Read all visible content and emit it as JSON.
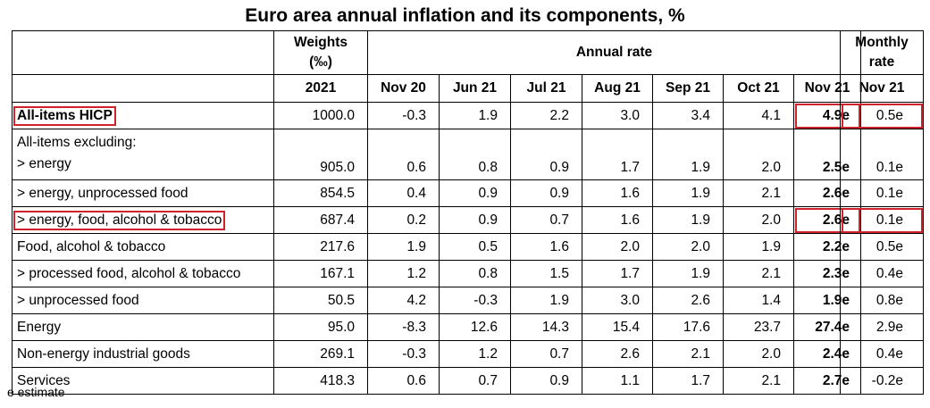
{
  "title": "Euro area annual inflation and its components, %",
  "headers": {
    "weights": "Weights",
    "weights_unit": "(‰)",
    "annual_rate": "Annual rate",
    "monthly_rate_1": "Monthly",
    "monthly_rate_2": "rate",
    "weight_year": "2021",
    "months": [
      "Nov 20",
      "Jun 21",
      "Jul 21",
      "Aug 21",
      "Sep 21",
      "Oct 21",
      "Nov 21"
    ],
    "monthly_month": "Nov 21"
  },
  "rows": [
    {
      "label": "All-items HICP",
      "weight": "1000.0",
      "values": [
        "-0.3",
        "1.9",
        "2.2",
        "3.0",
        "3.4",
        "4.1",
        "4.9e"
      ],
      "monthly": "0.5e"
    },
    {
      "label_top": "All-items excluding:",
      "label": "> energy",
      "weight": "905.0",
      "values": [
        "0.6",
        "0.8",
        "0.9",
        "1.7",
        "1.9",
        "2.0",
        "2.5e"
      ],
      "monthly": "0.1e"
    },
    {
      "label": "> energy, unprocessed food",
      "weight": "854.5",
      "values": [
        "0.4",
        "0.9",
        "0.9",
        "1.6",
        "1.9",
        "2.1",
        "2.6e"
      ],
      "monthly": "0.1e"
    },
    {
      "label": "> energy, food, alcohol & tobacco",
      "weight": "687.4",
      "values": [
        "0.2",
        "0.9",
        "0.7",
        "1.6",
        "1.9",
        "2.0",
        "2.6e"
      ],
      "monthly": "0.1e"
    },
    {
      "label": "Food, alcohol & tobacco",
      "weight": "217.6",
      "values": [
        "1.9",
        "0.5",
        "1.6",
        "2.0",
        "2.0",
        "1.9",
        "2.2e"
      ],
      "monthly": "0.5e"
    },
    {
      "label": "> processed food, alcohol & tobacco",
      "weight": "167.1",
      "values": [
        "1.2",
        "0.8",
        "1.5",
        "1.7",
        "1.9",
        "2.1",
        "2.3e"
      ],
      "monthly": "0.4e"
    },
    {
      "label": "> unprocessed food",
      "weight": "50.5",
      "values": [
        "4.2",
        "-0.3",
        "1.9",
        "3.0",
        "2.6",
        "1.4",
        "1.9e"
      ],
      "monthly": "0.8e"
    },
    {
      "label": "Energy",
      "weight": "95.0",
      "values": [
        "-8.3",
        "12.6",
        "14.3",
        "15.4",
        "17.6",
        "23.7",
        "27.4e"
      ],
      "monthly": "2.9e"
    },
    {
      "label": "Non-energy industrial goods",
      "weight": "269.1",
      "values": [
        "-0.3",
        "1.2",
        "0.7",
        "2.6",
        "2.1",
        "2.0",
        "2.4e"
      ],
      "monthly": "0.4e"
    },
    {
      "label": "Services",
      "weight": "418.3",
      "values": [
        "0.6",
        "0.7",
        "0.9",
        "1.1",
        "1.7",
        "2.1",
        "2.7e"
      ],
      "monthly": "-0.2e"
    }
  ],
  "highlight_color": "#d0222a",
  "footnote": "e estimate"
}
